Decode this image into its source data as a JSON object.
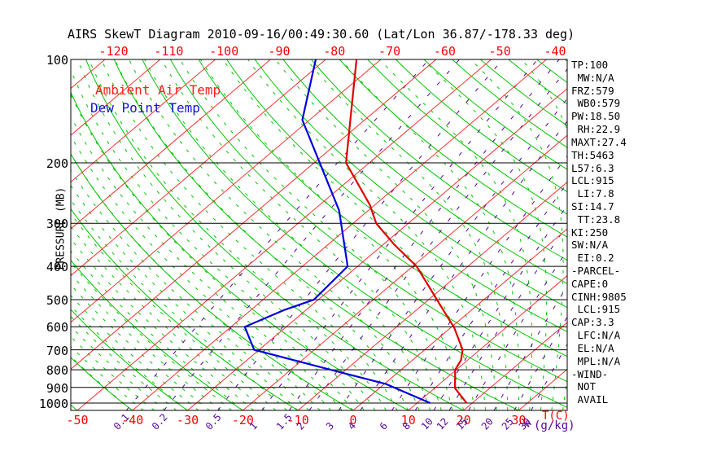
{
  "title": "AIRS SkewT Diagram 2010-09-16/00:49:30.60 (Lat/Lon 36.87/-178.33 deg)",
  "legend": {
    "temp": "Ambient Air Temp",
    "dewpoint": "Dew Point Temp"
  },
  "axes": {
    "pressure_label": "PRESSURE (MB)",
    "pressure_ticks": [
      100,
      200,
      300,
      400,
      500,
      600,
      700,
      800,
      900,
      1000
    ],
    "top_temp_ticks": [
      -120,
      -110,
      -100,
      -90,
      -80,
      -70,
      -60,
      -50,
      -40
    ],
    "bottom_temp_ticks": [
      -50,
      -40,
      -30,
      -20,
      -10,
      0,
      10,
      20,
      30
    ],
    "temp_unit": "T(C)",
    "mixing_ratio_ticks": [
      "0.1",
      "0.2",
      "0.5",
      "1",
      "1.5",
      "2",
      "3",
      "4",
      "6",
      "8",
      "10",
      "12",
      "15",
      "20",
      "25",
      "30"
    ],
    "mixing_w_label": "W",
    "mixing_unit": "(g/kg)"
  },
  "side_panel": [
    "TP:100",
    " MW:N/A",
    "FRZ:579",
    " WB0:579",
    "PW:18.50",
    " RH:22.9",
    "MAXT:27.4",
    "TH:5463",
    "L57:6.3",
    "LCL:915",
    " LI:7.8",
    "SI:14.7",
    " TT:23.8",
    "KI:250",
    "SW:N/A",
    " EI:0.2",
    "-PARCEL-",
    "CAPE:0",
    "CINH:9805",
    " LCL:915",
    "CAP:3.3",
    " LFC:N/A",
    " EL:N/A",
    " MPL:N/A",
    "-WIND-",
    " NOT",
    " AVAIL"
  ],
  "colors": {
    "isotherm": "#ff3030",
    "dry_adiabat": "#00c800",
    "moist_adiabat": "#00c800",
    "mixing_ratio": "#550099",
    "pressure_line": "#000000",
    "temp_profile": "#e00000",
    "dewpoint_profile": "#0000dd",
    "tick_label_red": "#ff0000",
    "mixing_label_purple": "#550099"
  },
  "chart_data": {
    "type": "line",
    "subtype": "skew-t-log-p",
    "title": "AIRS SkewT Diagram 2010-09-16/00:49:30.60 (Lat/Lon 36.87/-178.33 deg)",
    "xlabel": "T(C)",
    "ylabel": "PRESSURE (MB)",
    "x_range_surface_c": [
      -52,
      39
    ],
    "y_range_mb": [
      100,
      1051
    ],
    "y_scale": "log",
    "pressure_gridlines_mb": [
      100,
      200,
      300,
      400,
      500,
      600,
      700,
      800,
      900,
      1000
    ],
    "isotherms_c": {
      "min": -120,
      "max": 30,
      "step": 10
    },
    "dry_adiabats_surface_temp_c": {
      "min": -50,
      "max": 190,
      "step": 10
    },
    "moist_adiabats_surface_temp_c": {
      "min": -40,
      "max": 38,
      "step": 2
    },
    "mixing_ratio_lines_g_kg": [
      0.1,
      0.2,
      0.5,
      1,
      1.5,
      2,
      3,
      4,
      6,
      8,
      10,
      12,
      15,
      20,
      25,
      30
    ],
    "series": [
      {
        "name": "Ambient Air Temp",
        "color": "#e00000",
        "points_p_mb_t_c": [
          [
            1000,
            19.0
          ],
          [
            905,
            13.7
          ],
          [
            800,
            9.8
          ],
          [
            750,
            8.8
          ],
          [
            700,
            6.9
          ],
          [
            600,
            0.4
          ],
          [
            585,
            -0.9
          ],
          [
            500,
            -8.5
          ],
          [
            400,
            -19.3
          ],
          [
            345,
            -28.1
          ],
          [
            300,
            -35.8
          ],
          [
            265,
            -40.9
          ],
          [
            200,
            -54.2
          ],
          [
            150,
            -62.6
          ],
          [
            100,
            -74.4
          ]
        ]
      },
      {
        "name": "Dew Point Temp",
        "color": "#0000dd",
        "points_p_mb_t_c": [
          [
            1000,
            12.4
          ],
          [
            880,
            0.3
          ],
          [
            825,
            -8.6
          ],
          [
            700,
            -30.9
          ],
          [
            600,
            -37.5
          ],
          [
            535,
            -33.9
          ],
          [
            500,
            -30.8
          ],
          [
            400,
            -31.8
          ],
          [
            275,
            -45.3
          ],
          [
            150,
            -71.3
          ],
          [
            100,
            -81.8
          ]
        ]
      }
    ]
  }
}
